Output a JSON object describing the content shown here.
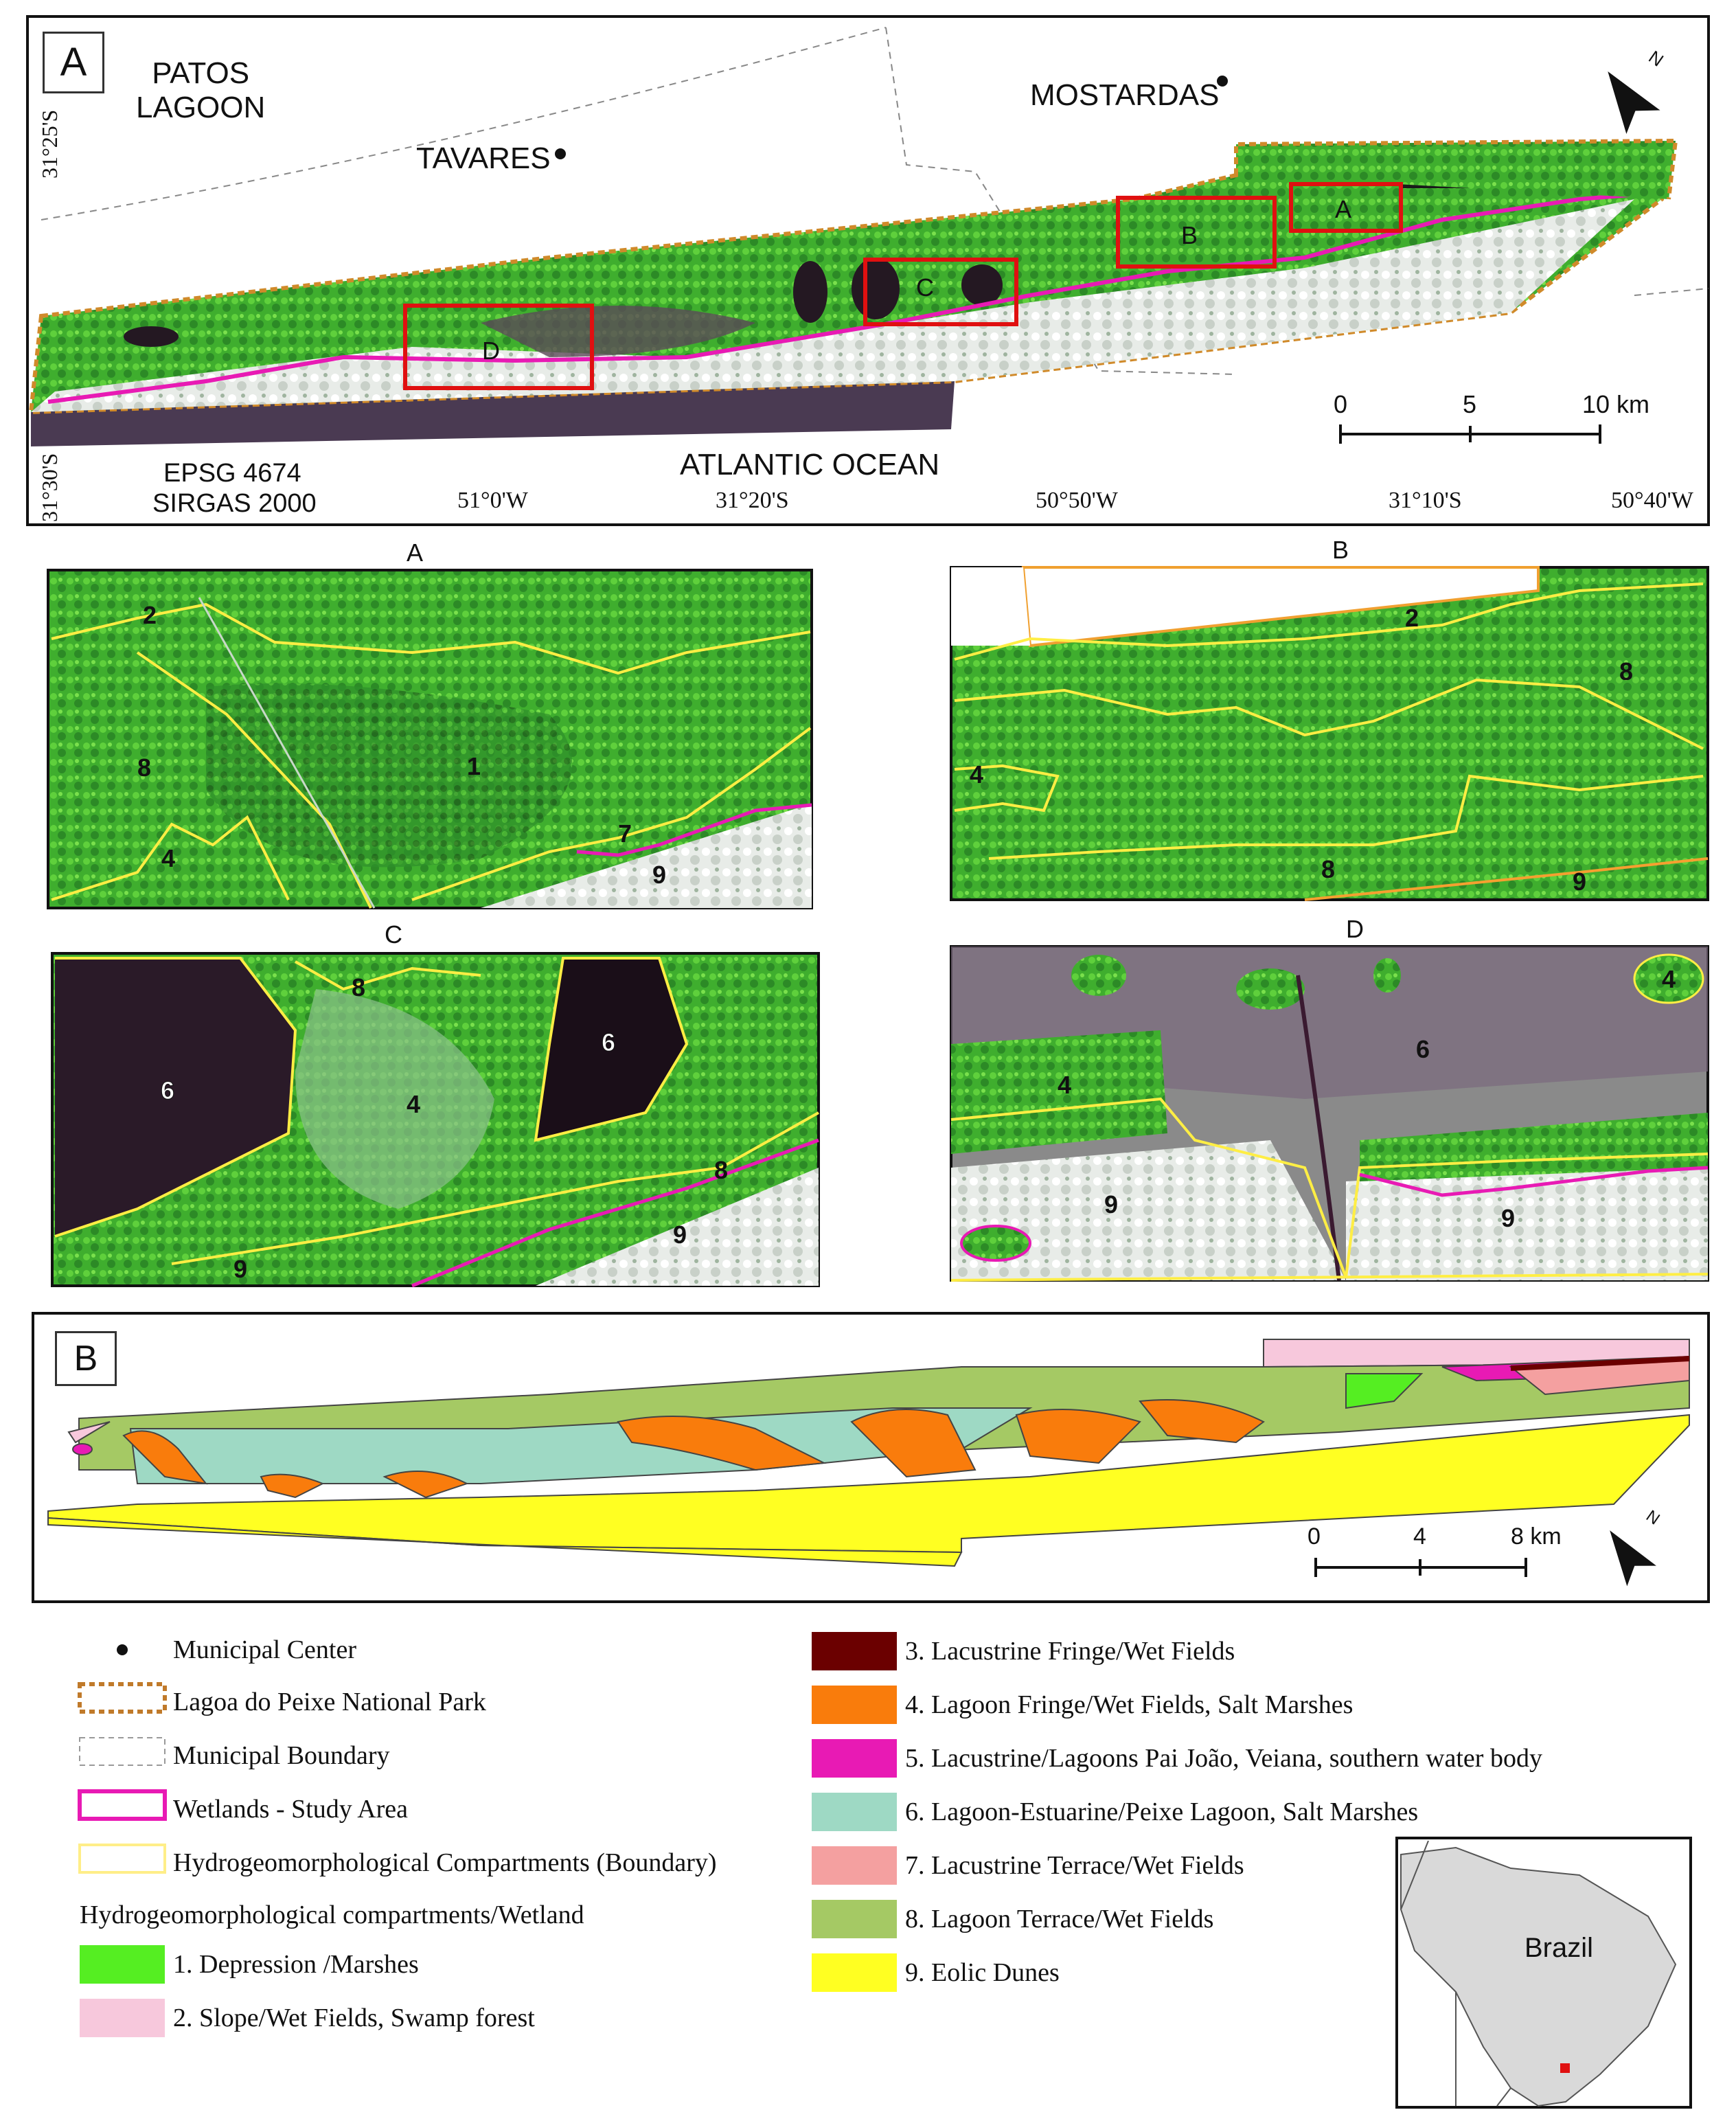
{
  "panel_a": {
    "letter": "A",
    "places": {
      "patos_lagoon_line1": "PATOS",
      "patos_lagoon_line2": "LAGOON",
      "tavares": "TAVARES",
      "mostardas": "MOSTARDAS",
      "atlantic": "ATLANTIC OCEAN"
    },
    "crs_line1": "EPSG 4674",
    "crs_line2": "SIRGAS 2000",
    "lat_ticks_left": [
      "31°25'S",
      "31°30'S"
    ],
    "bottom_ticks": [
      "51°0'W",
      "31°20'S",
      "50°50'W",
      "31°10'S",
      "50°40'W"
    ],
    "scale_labels": [
      "0",
      "5",
      "10 km"
    ],
    "inset_boxes": [
      "A",
      "B",
      "C",
      "D"
    ],
    "north": "N"
  },
  "detail_titles": [
    "A",
    "B",
    "C",
    "D"
  ],
  "detail_a_numbers": [
    "2",
    "8",
    "1",
    "4",
    "7",
    "9"
  ],
  "detail_b_numbers": [
    "2",
    "8",
    "4",
    "8",
    "9"
  ],
  "detail_c_numbers": [
    "8",
    "6",
    "4",
    "6",
    "8",
    "9",
    "9"
  ],
  "detail_d_numbers": [
    "4",
    "6",
    "4",
    "9",
    "9"
  ],
  "panel_b": {
    "letter": "B",
    "scale_labels": [
      "0",
      "4",
      "8 km"
    ],
    "north": "N"
  },
  "legend": {
    "symbols": [
      {
        "label": "Municipal Center"
      },
      {
        "label": "Lagoa do Peixe National Park"
      },
      {
        "label": "Municipal Boundary"
      },
      {
        "label": "Wetlands - Study Area"
      },
      {
        "label": "Hydrogeomorphological Compartments (Boundary)"
      }
    ],
    "section_title": "Hydrogeomorphological compartments/Wetland",
    "classes_left": [
      {
        "label": "1. Depression /Marshes",
        "color": "#55ee22"
      },
      {
        "label": "2. Slope/Wet Fields, Swamp forest",
        "color": "#f7c8dc"
      }
    ],
    "classes_right": [
      {
        "label": "3. Lacustrine Fringe/Wet Fields",
        "color": "#6b0000"
      },
      {
        "label": "4. Lagoon Fringe/Wet Fields, Salt Marshes",
        "color": "#f97c0c"
      },
      {
        "label": "5. Lacustrine/Lagoons Pai João, Veiana, southern water body",
        "color": "#e81ab4"
      },
      {
        "label": "6. Lagoon-Estuarine/Peixe Lagoon, Salt Marshes",
        "color": "#9ed9c4"
      },
      {
        "label": "7. Lacustrine Terrace/Wet Fields",
        "color": "#f4a0a0"
      },
      {
        "label": "8. Lagoon Terrace/Wet Fields",
        "color": "#a5c964"
      },
      {
        "label": "9. Eolic Dunes",
        "color": "#ffff22"
      }
    ]
  },
  "locator": {
    "label": "Brazil"
  }
}
